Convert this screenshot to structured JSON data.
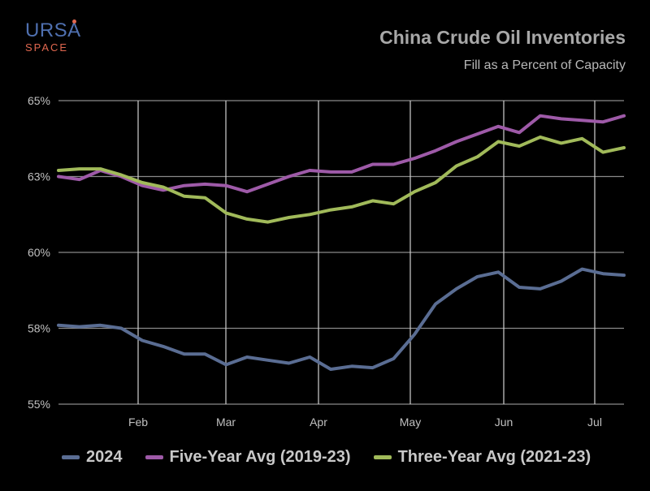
{
  "logo": {
    "top": "URSA",
    "bottom": "SPACE"
  },
  "header": {
    "title": "China Crude Oil Inventories",
    "subtitle": "Fill as a Percent of Capacity"
  },
  "colors": {
    "background": "#000000",
    "grid": "#8a8a8a",
    "series_2024": "#5a6d93",
    "series_five_year": "#9e5aa8",
    "series_three_year": "#a1ba5a"
  },
  "chart_data": {
    "type": "line",
    "title": "China Crude Oil Inventories",
    "subtitle": "Fill as a Percent of Capacity",
    "xlabel": "",
    "ylabel": "",
    "x_tick_labels": [
      "Feb",
      "Mar",
      "Apr",
      "May",
      "Jun",
      "Jul"
    ],
    "y_tick_labels": [
      "65%",
      "63%",
      "60%",
      "58%",
      "55%"
    ],
    "ylim": [
      55,
      65
    ],
    "grid": true,
    "legend_position": "bottom",
    "series": [
      {
        "name": "2024",
        "color": "#5a6d93",
        "values": [
          57.6,
          57.55,
          57.6,
          57.5,
          57.1,
          56.9,
          56.65,
          56.65,
          56.3,
          56.55,
          56.45,
          56.35,
          56.55,
          56.15,
          56.25,
          56.2,
          56.5,
          57.3,
          58.3,
          58.8,
          59.2,
          59.35,
          58.85,
          58.8,
          59.05,
          59.45,
          59.3,
          59.25
        ]
      },
      {
        "name": "Five-Year Avg (2019-23)",
        "color": "#9e5aa8",
        "values": [
          62.5,
          62.4,
          62.7,
          62.5,
          62.2,
          62.05,
          62.2,
          62.25,
          62.2,
          62.0,
          62.25,
          62.5,
          62.7,
          62.65,
          62.65,
          62.9,
          62.9,
          63.1,
          63.35,
          63.65,
          63.9,
          64.15,
          63.95,
          64.5,
          64.4,
          64.35,
          64.3,
          64.5
        ]
      },
      {
        "name": "Three-Year Avg (2021-23)",
        "color": "#a1ba5a",
        "values": [
          62.7,
          62.75,
          62.75,
          62.55,
          62.3,
          62.15,
          61.85,
          61.8,
          61.3,
          61.1,
          61.0,
          61.15,
          61.25,
          61.4,
          61.5,
          61.7,
          61.6,
          62.0,
          62.3,
          62.85,
          63.15,
          63.65,
          63.5,
          63.8,
          63.6,
          63.75,
          63.3,
          63.45
        ]
      }
    ]
  },
  "legend": [
    {
      "label": "2024",
      "color": "#5a6d93"
    },
    {
      "label": "Five-Year Avg (2019-23)",
      "color": "#9e5aa8"
    },
    {
      "label": "Three-Year Avg (2021-23)",
      "color": "#a1ba5a"
    }
  ]
}
